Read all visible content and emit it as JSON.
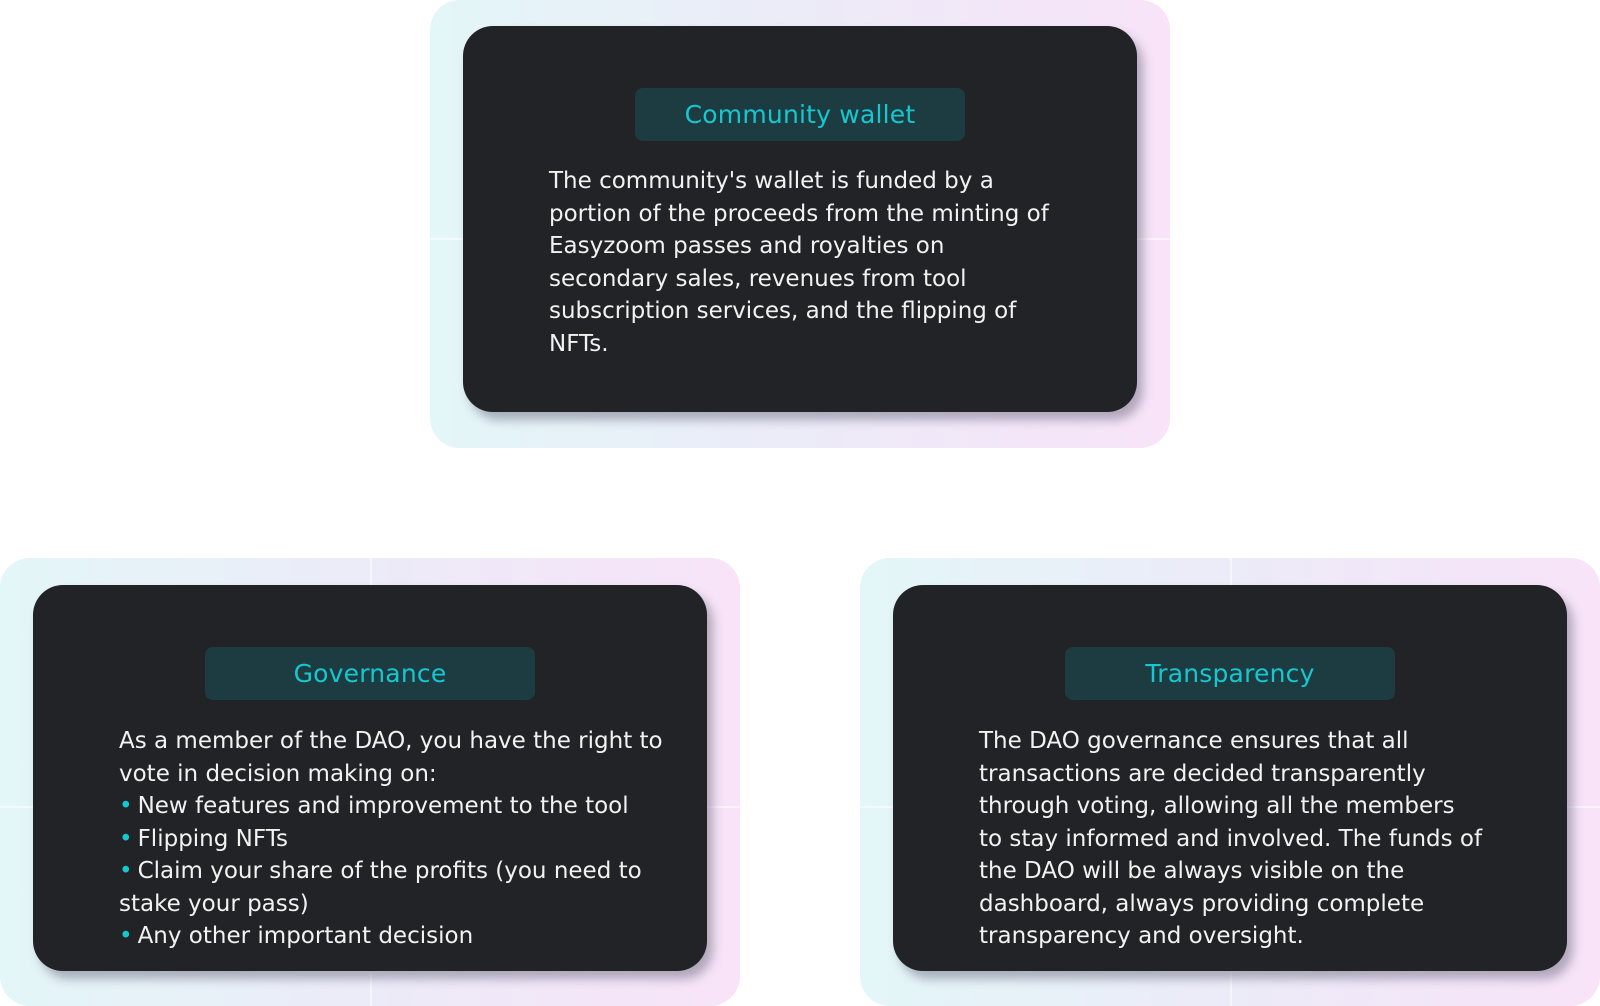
{
  "cards": {
    "community_wallet": {
      "title": "Community wallet",
      "text": "The community's wallet is funded by a portion of the proceeds from the minting of Easyzoom passes and royalties on secondary sales, revenues from tool subscription services, and the flipping of NFTs."
    },
    "governance": {
      "title": "Governance",
      "intro": "As a member of the DAO, you have the right to vote in decision making on:",
      "bullet_glyph": "•",
      "items": [
        "New features and improvement to the tool",
        "Flipping NFTs",
        "Claim your share of the profits (you need to stake your pass)",
        "Any other important decision"
      ]
    },
    "transparency": {
      "title": "Transparency",
      "text": "The DAO governance ensures that all transactions are decided transparently through voting, allowing all the members to stay informed and involved. The funds of the DAO will be always visible on the dashboard, always providing complete transparency and oversight."
    }
  },
  "colors": {
    "card_background": "#222326",
    "title_background": "#1c3c42",
    "accent": "#17c7cf",
    "body_text": "#f2f2f2",
    "panel_gradient_start": "#e3f6f8",
    "panel_gradient_end": "#f8e3f8"
  }
}
